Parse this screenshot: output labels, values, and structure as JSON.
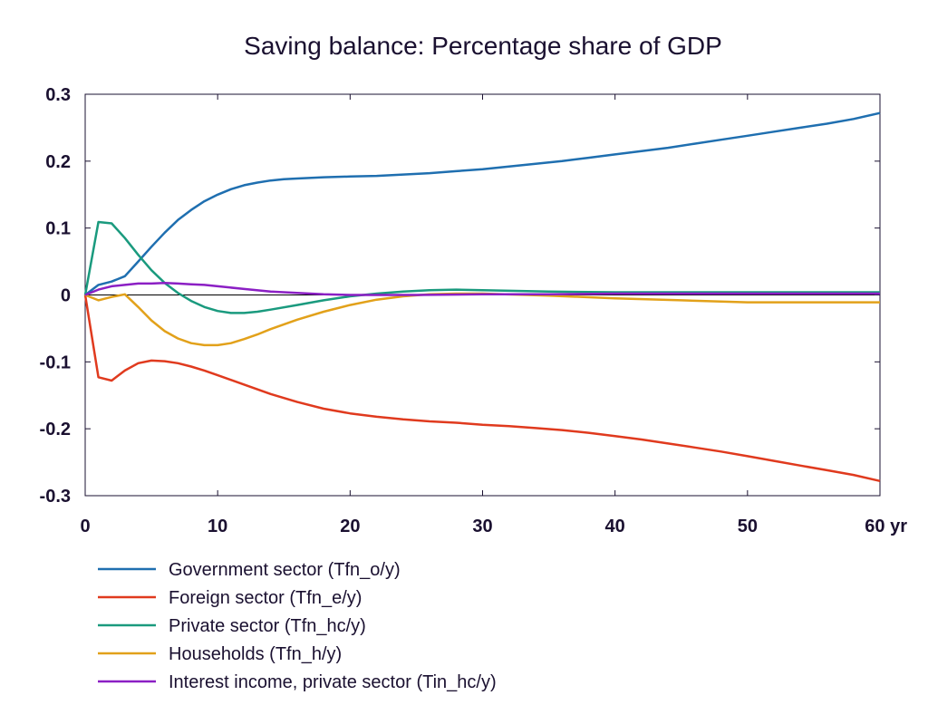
{
  "chart_data": {
    "type": "line",
    "title": "Saving balance: Percentage share of GDP",
    "xlabel": "",
    "ylabel": "",
    "x_unit": "yr",
    "xlim": [
      0,
      60
    ],
    "ylim": [
      -0.3,
      0.3
    ],
    "xticks": [
      0,
      10,
      20,
      30,
      40,
      50,
      60
    ],
    "xtick_labels": [
      "0",
      "10",
      "20",
      "30",
      "40",
      "50",
      "60 yr"
    ],
    "yticks": [
      0.3,
      0.2,
      0.1,
      0,
      -0.1,
      -0.2,
      -0.3
    ],
    "ytick_labels": [
      "0.3",
      "0.2",
      "0.1",
      "0",
      "-0.1",
      "-0.2",
      "-0.3"
    ],
    "grid": false,
    "legend_position": "bottom-left",
    "series": [
      {
        "name": "Government sector (Tfn_o/y)",
        "color": "#1f6fb0",
        "points": [
          [
            0,
            0
          ],
          [
            1,
            0.015
          ],
          [
            2,
            0.02
          ],
          [
            3,
            0.028
          ],
          [
            4,
            0.05
          ],
          [
            5,
            0.072
          ],
          [
            6,
            0.093
          ],
          [
            7,
            0.112
          ],
          [
            8,
            0.127
          ],
          [
            9,
            0.14
          ],
          [
            10,
            0.15
          ],
          [
            11,
            0.158
          ],
          [
            12,
            0.164
          ],
          [
            13,
            0.168
          ],
          [
            14,
            0.171
          ],
          [
            15,
            0.173
          ],
          [
            16,
            0.174
          ],
          [
            18,
            0.176
          ],
          [
            20,
            0.177
          ],
          [
            22,
            0.178
          ],
          [
            24,
            0.18
          ],
          [
            26,
            0.182
          ],
          [
            28,
            0.185
          ],
          [
            30,
            0.188
          ],
          [
            32,
            0.192
          ],
          [
            34,
            0.196
          ],
          [
            36,
            0.2
          ],
          [
            38,
            0.205
          ],
          [
            40,
            0.21
          ],
          [
            42,
            0.215
          ],
          [
            44,
            0.22
          ],
          [
            46,
            0.226
          ],
          [
            48,
            0.232
          ],
          [
            50,
            0.238
          ],
          [
            52,
            0.244
          ],
          [
            54,
            0.25
          ],
          [
            56,
            0.256
          ],
          [
            58,
            0.263
          ],
          [
            60,
            0.272
          ]
        ]
      },
      {
        "name": "Foreign sector (Tfn_e/y)",
        "color": "#e03a1e",
        "points": [
          [
            0,
            0
          ],
          [
            1,
            -0.123
          ],
          [
            2,
            -0.128
          ],
          [
            3,
            -0.113
          ],
          [
            4,
            -0.102
          ],
          [
            5,
            -0.098
          ],
          [
            6,
            -0.099
          ],
          [
            7,
            -0.102
          ],
          [
            8,
            -0.107
          ],
          [
            9,
            -0.113
          ],
          [
            10,
            -0.12
          ],
          [
            12,
            -0.134
          ],
          [
            14,
            -0.148
          ],
          [
            16,
            -0.16
          ],
          [
            18,
            -0.17
          ],
          [
            20,
            -0.177
          ],
          [
            22,
            -0.182
          ],
          [
            24,
            -0.186
          ],
          [
            26,
            -0.189
          ],
          [
            28,
            -0.191
          ],
          [
            30,
            -0.194
          ],
          [
            32,
            -0.196
          ],
          [
            34,
            -0.199
          ],
          [
            36,
            -0.202
          ],
          [
            38,
            -0.206
          ],
          [
            40,
            -0.211
          ],
          [
            42,
            -0.216
          ],
          [
            44,
            -0.222
          ],
          [
            46,
            -0.228
          ],
          [
            48,
            -0.234
          ],
          [
            50,
            -0.241
          ],
          [
            52,
            -0.248
          ],
          [
            54,
            -0.255
          ],
          [
            56,
            -0.262
          ],
          [
            58,
            -0.269
          ],
          [
            60,
            -0.278
          ]
        ]
      },
      {
        "name": "Private sector (Tfn_hc/y)",
        "color": "#1a9a7e",
        "points": [
          [
            0,
            0
          ],
          [
            1,
            0.109
          ],
          [
            2,
            0.107
          ],
          [
            3,
            0.085
          ],
          [
            4,
            0.06
          ],
          [
            5,
            0.037
          ],
          [
            6,
            0.018
          ],
          [
            7,
            0.003
          ],
          [
            8,
            -0.009
          ],
          [
            9,
            -0.018
          ],
          [
            10,
            -0.024
          ],
          [
            11,
            -0.027
          ],
          [
            12,
            -0.027
          ],
          [
            13,
            -0.025
          ],
          [
            14,
            -0.022
          ],
          [
            16,
            -0.015
          ],
          [
            18,
            -0.008
          ],
          [
            20,
            -0.002
          ],
          [
            22,
            0.002
          ],
          [
            24,
            0.005
          ],
          [
            26,
            0.007
          ],
          [
            28,
            0.008
          ],
          [
            30,
            0.007
          ],
          [
            35,
            0.005
          ],
          [
            40,
            0.004
          ],
          [
            45,
            0.004
          ],
          [
            50,
            0.004
          ],
          [
            55,
            0.004
          ],
          [
            60,
            0.004
          ]
        ]
      },
      {
        "name": "Households (Tfn_h/y)",
        "color": "#e2a11a",
        "points": [
          [
            0,
            0
          ],
          [
            1,
            -0.008
          ],
          [
            2,
            -0.003
          ],
          [
            3,
            0.001
          ],
          [
            4,
            -0.018
          ],
          [
            5,
            -0.038
          ],
          [
            6,
            -0.054
          ],
          [
            7,
            -0.065
          ],
          [
            8,
            -0.072
          ],
          [
            9,
            -0.075
          ],
          [
            10,
            -0.075
          ],
          [
            11,
            -0.072
          ],
          [
            12,
            -0.066
          ],
          [
            13,
            -0.059
          ],
          [
            14,
            -0.051
          ],
          [
            16,
            -0.037
          ],
          [
            18,
            -0.025
          ],
          [
            20,
            -0.015
          ],
          [
            22,
            -0.007
          ],
          [
            24,
            -0.002
          ],
          [
            26,
            0.001
          ],
          [
            28,
            0.002
          ],
          [
            30,
            0.002
          ],
          [
            35,
            -0.001
          ],
          [
            40,
            -0.005
          ],
          [
            45,
            -0.008
          ],
          [
            50,
            -0.011
          ],
          [
            55,
            -0.011
          ],
          [
            60,
            -0.011
          ]
        ]
      },
      {
        "name": "Interest income, private sector (Tin_hc/y)",
        "color": "#8b1fc4",
        "points": [
          [
            0,
            0
          ],
          [
            1,
            0.008
          ],
          [
            2,
            0.013
          ],
          [
            3,
            0.015
          ],
          [
            4,
            0.017
          ],
          [
            5,
            0.017
          ],
          [
            6,
            0.018
          ],
          [
            7,
            0.017
          ],
          [
            8,
            0.016
          ],
          [
            9,
            0.015
          ],
          [
            10,
            0.013
          ],
          [
            12,
            0.009
          ],
          [
            14,
            0.005
          ],
          [
            16,
            0.003
          ],
          [
            18,
            0.001
          ],
          [
            20,
            0
          ],
          [
            25,
            0
          ],
          [
            30,
            0.001
          ],
          [
            35,
            0.001
          ],
          [
            40,
            0.002
          ],
          [
            45,
            0.002
          ],
          [
            50,
            0.002
          ],
          [
            55,
            0.002
          ],
          [
            60,
            0.002
          ]
        ]
      }
    ]
  }
}
